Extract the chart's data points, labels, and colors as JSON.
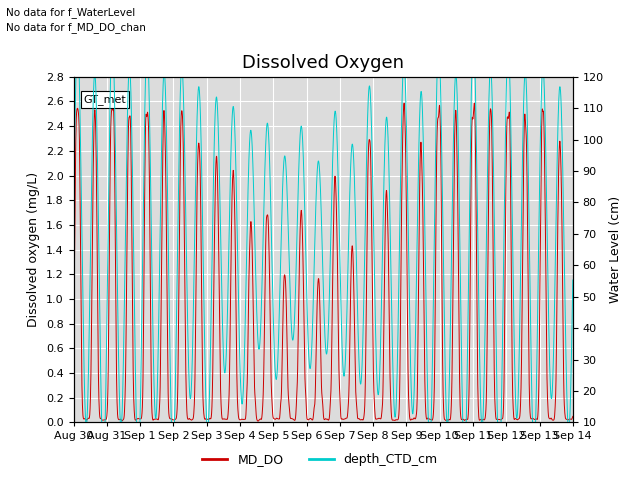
{
  "title": "Dissolved Oxygen",
  "text_top_left": [
    "No data for f_WaterLevel",
    "No data for f_MD_DO_chan"
  ],
  "legend_box_label": "GT_met",
  "ylabel_left": "Dissolved oxygen (mg/L)",
  "ylabel_right": "Water Level (cm)",
  "ylim_left": [
    0.0,
    2.8
  ],
  "ylim_right": [
    10,
    120
  ],
  "yticks_left": [
    0.0,
    0.2,
    0.4,
    0.6,
    0.8,
    1.0,
    1.2,
    1.4,
    1.6,
    1.8,
    2.0,
    2.2,
    2.4,
    2.6,
    2.8
  ],
  "yticks_right": [
    10,
    20,
    30,
    40,
    50,
    60,
    70,
    80,
    90,
    100,
    110,
    120
  ],
  "xtick_labels": [
    "Aug 30",
    "Aug 31",
    "Sep 1",
    "Sep 2",
    "Sep 3",
    "Sep 4",
    "Sep 5",
    "Sep 6",
    "Sep 7",
    "Sep 8",
    "Sep 9",
    "Sep 10",
    "Sep 11",
    "Sep 12",
    "Sep 13",
    "Sep 14"
  ],
  "color_MD_DO": "#cc0000",
  "color_depth_CTD": "#00cccc",
  "legend_labels": [
    "MD_DO",
    "depth_CTD_cm"
  ],
  "background_color": "#dcdcdc",
  "grid_color": "#ffffff",
  "title_fontsize": 13,
  "label_fontsize": 9,
  "tick_fontsize": 8,
  "n_days": 15,
  "n_points": 3000
}
